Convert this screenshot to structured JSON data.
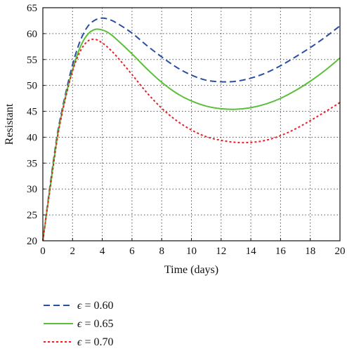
{
  "chart_data": {
    "type": "line",
    "title": "",
    "xlabel": "Time (days)",
    "ylabel": "Resistant",
    "xlim": [
      0,
      20
    ],
    "ylim": [
      20,
      65
    ],
    "x_ticks": [
      0,
      2,
      4,
      6,
      8,
      10,
      12,
      14,
      16,
      18,
      20
    ],
    "y_ticks": [
      20,
      25,
      30,
      35,
      40,
      45,
      50,
      55,
      60,
      65
    ],
    "grid": true,
    "legend_position": "below",
    "x": [
      0,
      0.5,
      1,
      1.5,
      2,
      2.5,
      3,
      3.5,
      4,
      4.5,
      5,
      6,
      7,
      8,
      9,
      10,
      11,
      12,
      13,
      14,
      15,
      16,
      17,
      18,
      19,
      20
    ],
    "series": [
      {
        "name": "ϵ = 0.60",
        "symbol": "ϵ",
        "value_text": " = 0.60",
        "color": "#2b4ea3",
        "style": "dashed",
        "values": [
          20,
          31,
          41,
          48,
          54,
          58.5,
          61.3,
          62.6,
          63,
          62.7,
          62,
          60.1,
          57.7,
          55.5,
          53.5,
          52,
          51,
          50.7,
          50.8,
          51.4,
          52.4,
          53.8,
          55.5,
          57.3,
          59.3,
          61.5
        ]
      },
      {
        "name": "ϵ = 0.65",
        "symbol": "ϵ",
        "value_text": " = 0.65",
        "color": "#5cbf3a",
        "style": "solid",
        "values": [
          20,
          30.5,
          40.5,
          47.5,
          53,
          57.3,
          59.8,
          60.8,
          60.7,
          60,
          58.8,
          56.1,
          53.2,
          50.6,
          48.5,
          47,
          46,
          45.5,
          45.4,
          45.7,
          46.4,
          47.5,
          49,
          50.8,
          52.9,
          55.3
        ]
      },
      {
        "name": "ϵ = 0.70",
        "symbol": "ϵ",
        "value_text": " = 0.70",
        "color": "#e8202a",
        "style": "dotted",
        "values": [
          20,
          30.3,
          40.2,
          47.2,
          52.8,
          56.5,
          58.5,
          58.9,
          58.2,
          57,
          55.5,
          52.1,
          48.6,
          45.6,
          43.2,
          41.4,
          40.1,
          39.4,
          39,
          39,
          39.4,
          40.3,
          41.6,
          43.2,
          44.9,
          46.7
        ]
      }
    ]
  }
}
